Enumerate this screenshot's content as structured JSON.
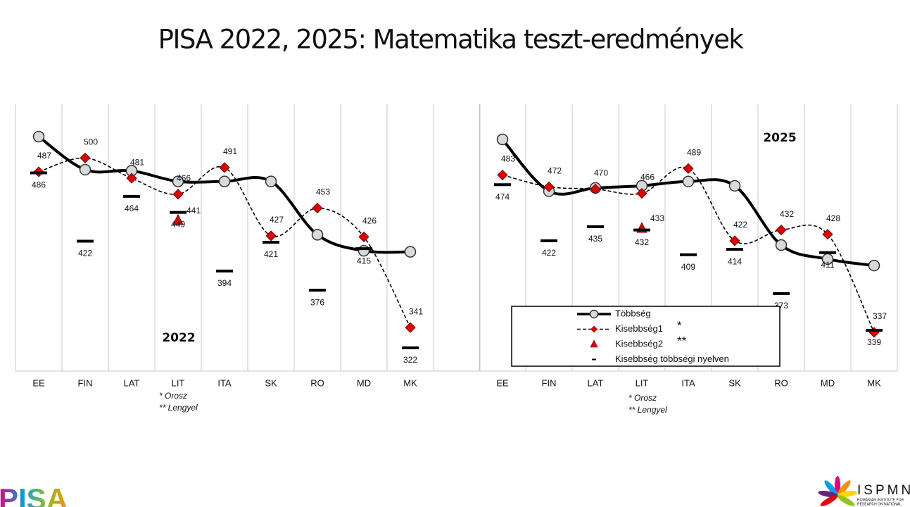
{
  "title": "PISA 2022, 2025: Matematika teszt-eredmények",
  "chart_data": [
    {
      "type": "line",
      "annotation": "2022",
      "categories": [
        "EE",
        "FIN",
        "LAT",
        "LIT",
        "ITA",
        "SK",
        "RO",
        "MD",
        "MK"
      ],
      "notes": [
        "* Orosz",
        "** Lengyel"
      ],
      "series": [
        {
          "style": "majority",
          "color": "#000000",
          "values": [
            520,
            489,
            488,
            478,
            478,
            478,
            428,
            413,
            412
          ]
        },
        {
          "style": "minority1",
          "color": "#e00000",
          "values": [
            487,
            500,
            481,
            466,
            491,
            427,
            453,
            426,
            341
          ]
        },
        {
          "style": "minority2",
          "color": "#e00000",
          "values": [
            null,
            null,
            null,
            441,
            null,
            null,
            null,
            null,
            null
          ]
        },
        {
          "style": "dash",
          "color": "#000000",
          "values": [
            486,
            422,
            464,
            449,
            394,
            421,
            376,
            415,
            322
          ]
        }
      ]
    },
    {
      "type": "line",
      "annotation": "2025",
      "categories": [
        "EE",
        "FIN",
        "LAT",
        "LIT",
        "ITA",
        "SK",
        "RO",
        "MD",
        "MK"
      ],
      "notes": [
        "* Orosz",
        "** Lengyel"
      ],
      "legend": "bottom right",
      "series": [
        {
          "name": "Többség",
          "style": "majority",
          "color": "#000000",
          "values": [
            516,
            468,
            471,
            473,
            477,
            473,
            418,
            405,
            399
          ]
        },
        {
          "name": "Kisebbség1",
          "note": "*",
          "style": "minority1",
          "color": "#e00000",
          "values": [
            483,
            472,
            470,
            466,
            489,
            422,
            432,
            428,
            337
          ]
        },
        {
          "name": "Kisebbség2",
          "note": "**",
          "style": "minority2",
          "color": "#e00000",
          "values": [
            null,
            null,
            null,
            433,
            null,
            null,
            null,
            null,
            null
          ]
        },
        {
          "name": "Kisebbség többségi nyelven",
          "style": "dash",
          "color": "#000000",
          "values": [
            474,
            422,
            435,
            432,
            409,
            414,
            373,
            411,
            339
          ]
        }
      ]
    }
  ],
  "logos": {
    "left": "PISA",
    "right": "ISPMN",
    "right_sub": [
      "ROMANIAN INSTITUTE FOR",
      "RESEARCH ON NATIONAL"
    ]
  }
}
